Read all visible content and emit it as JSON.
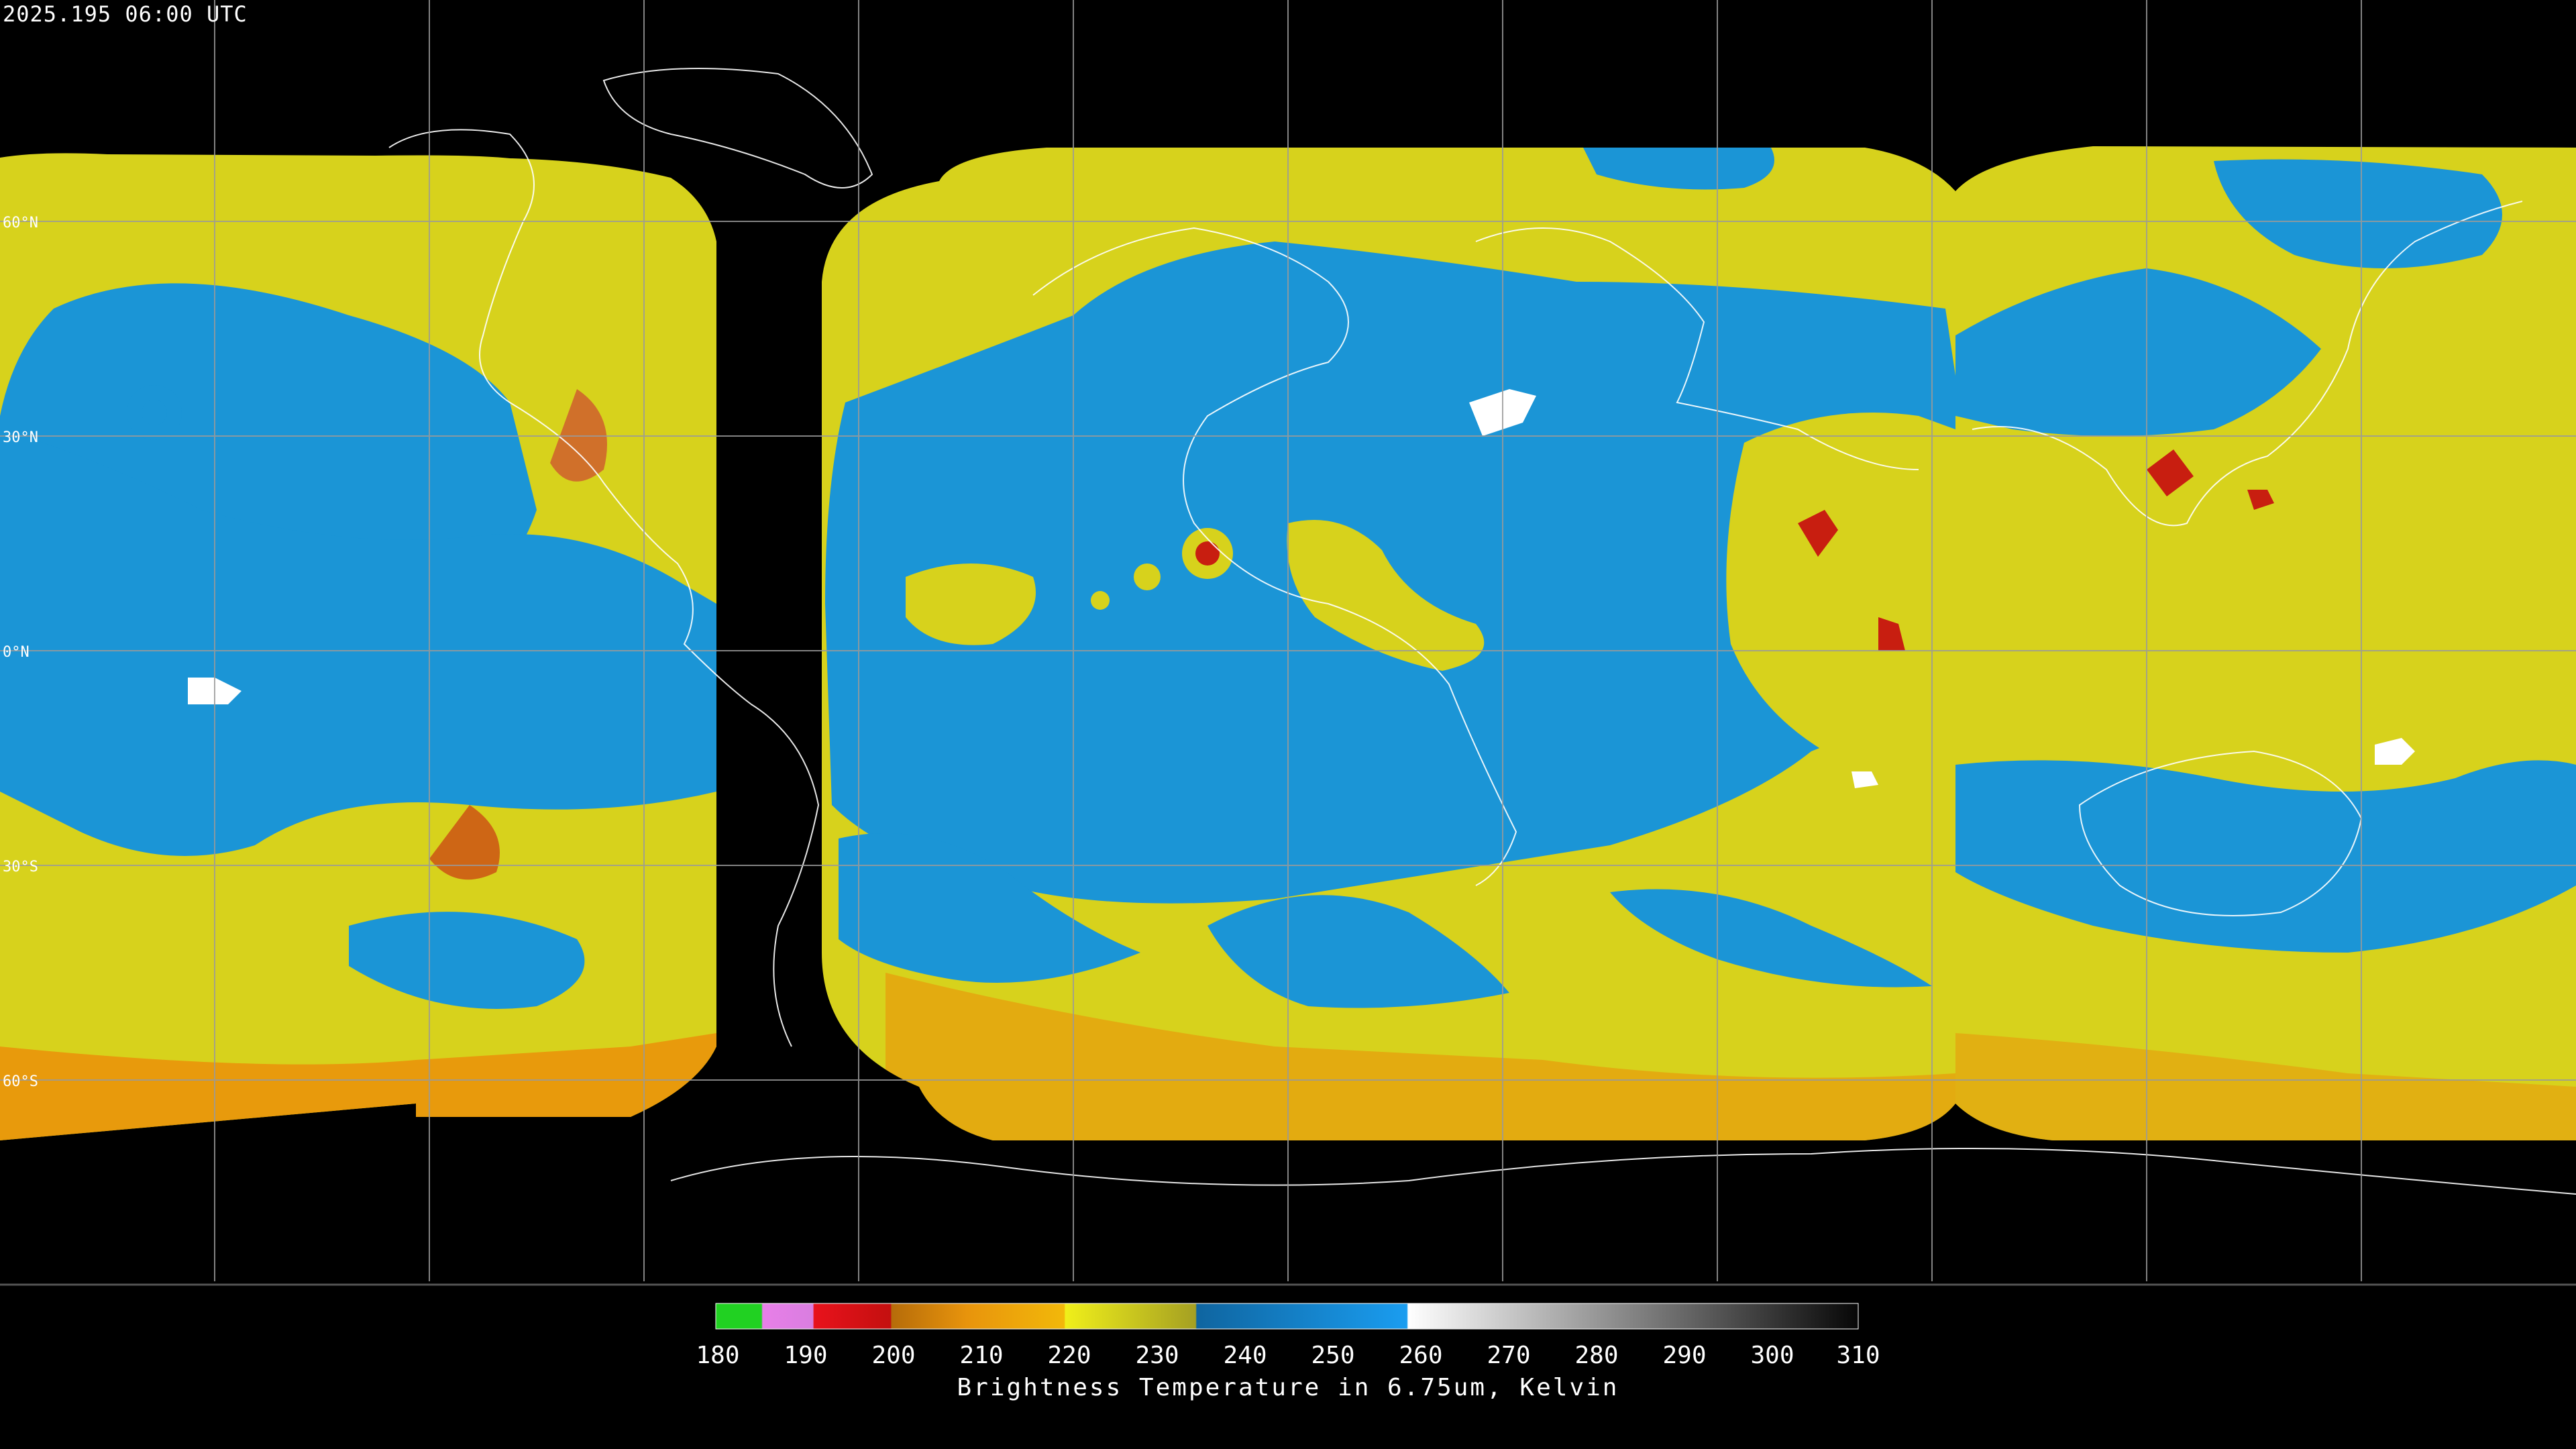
{
  "timestamp": "2025.195 06:00 UTC",
  "latitude_labels": [
    "60°N",
    "30°N",
    "0°N",
    "30°S",
    "60°S"
  ],
  "legend": {
    "title": "Brightness Temperature in 6.75um, Kelvin",
    "range": [
      180,
      310
    ],
    "ticks": [
      "180",
      "190",
      "200",
      "210",
      "220",
      "230",
      "240",
      "250",
      "260",
      "270",
      "280",
      "290",
      "300",
      "310"
    ]
  },
  "colors": {
    "background": "#000000",
    "grid": "#9a9a9a",
    "coast": "#ffffff",
    "moist_yellow": "#d7d21c",
    "dry_blue": "#1b95d6",
    "deep_red": "#c81e10",
    "orange": "#e89a0c"
  }
}
